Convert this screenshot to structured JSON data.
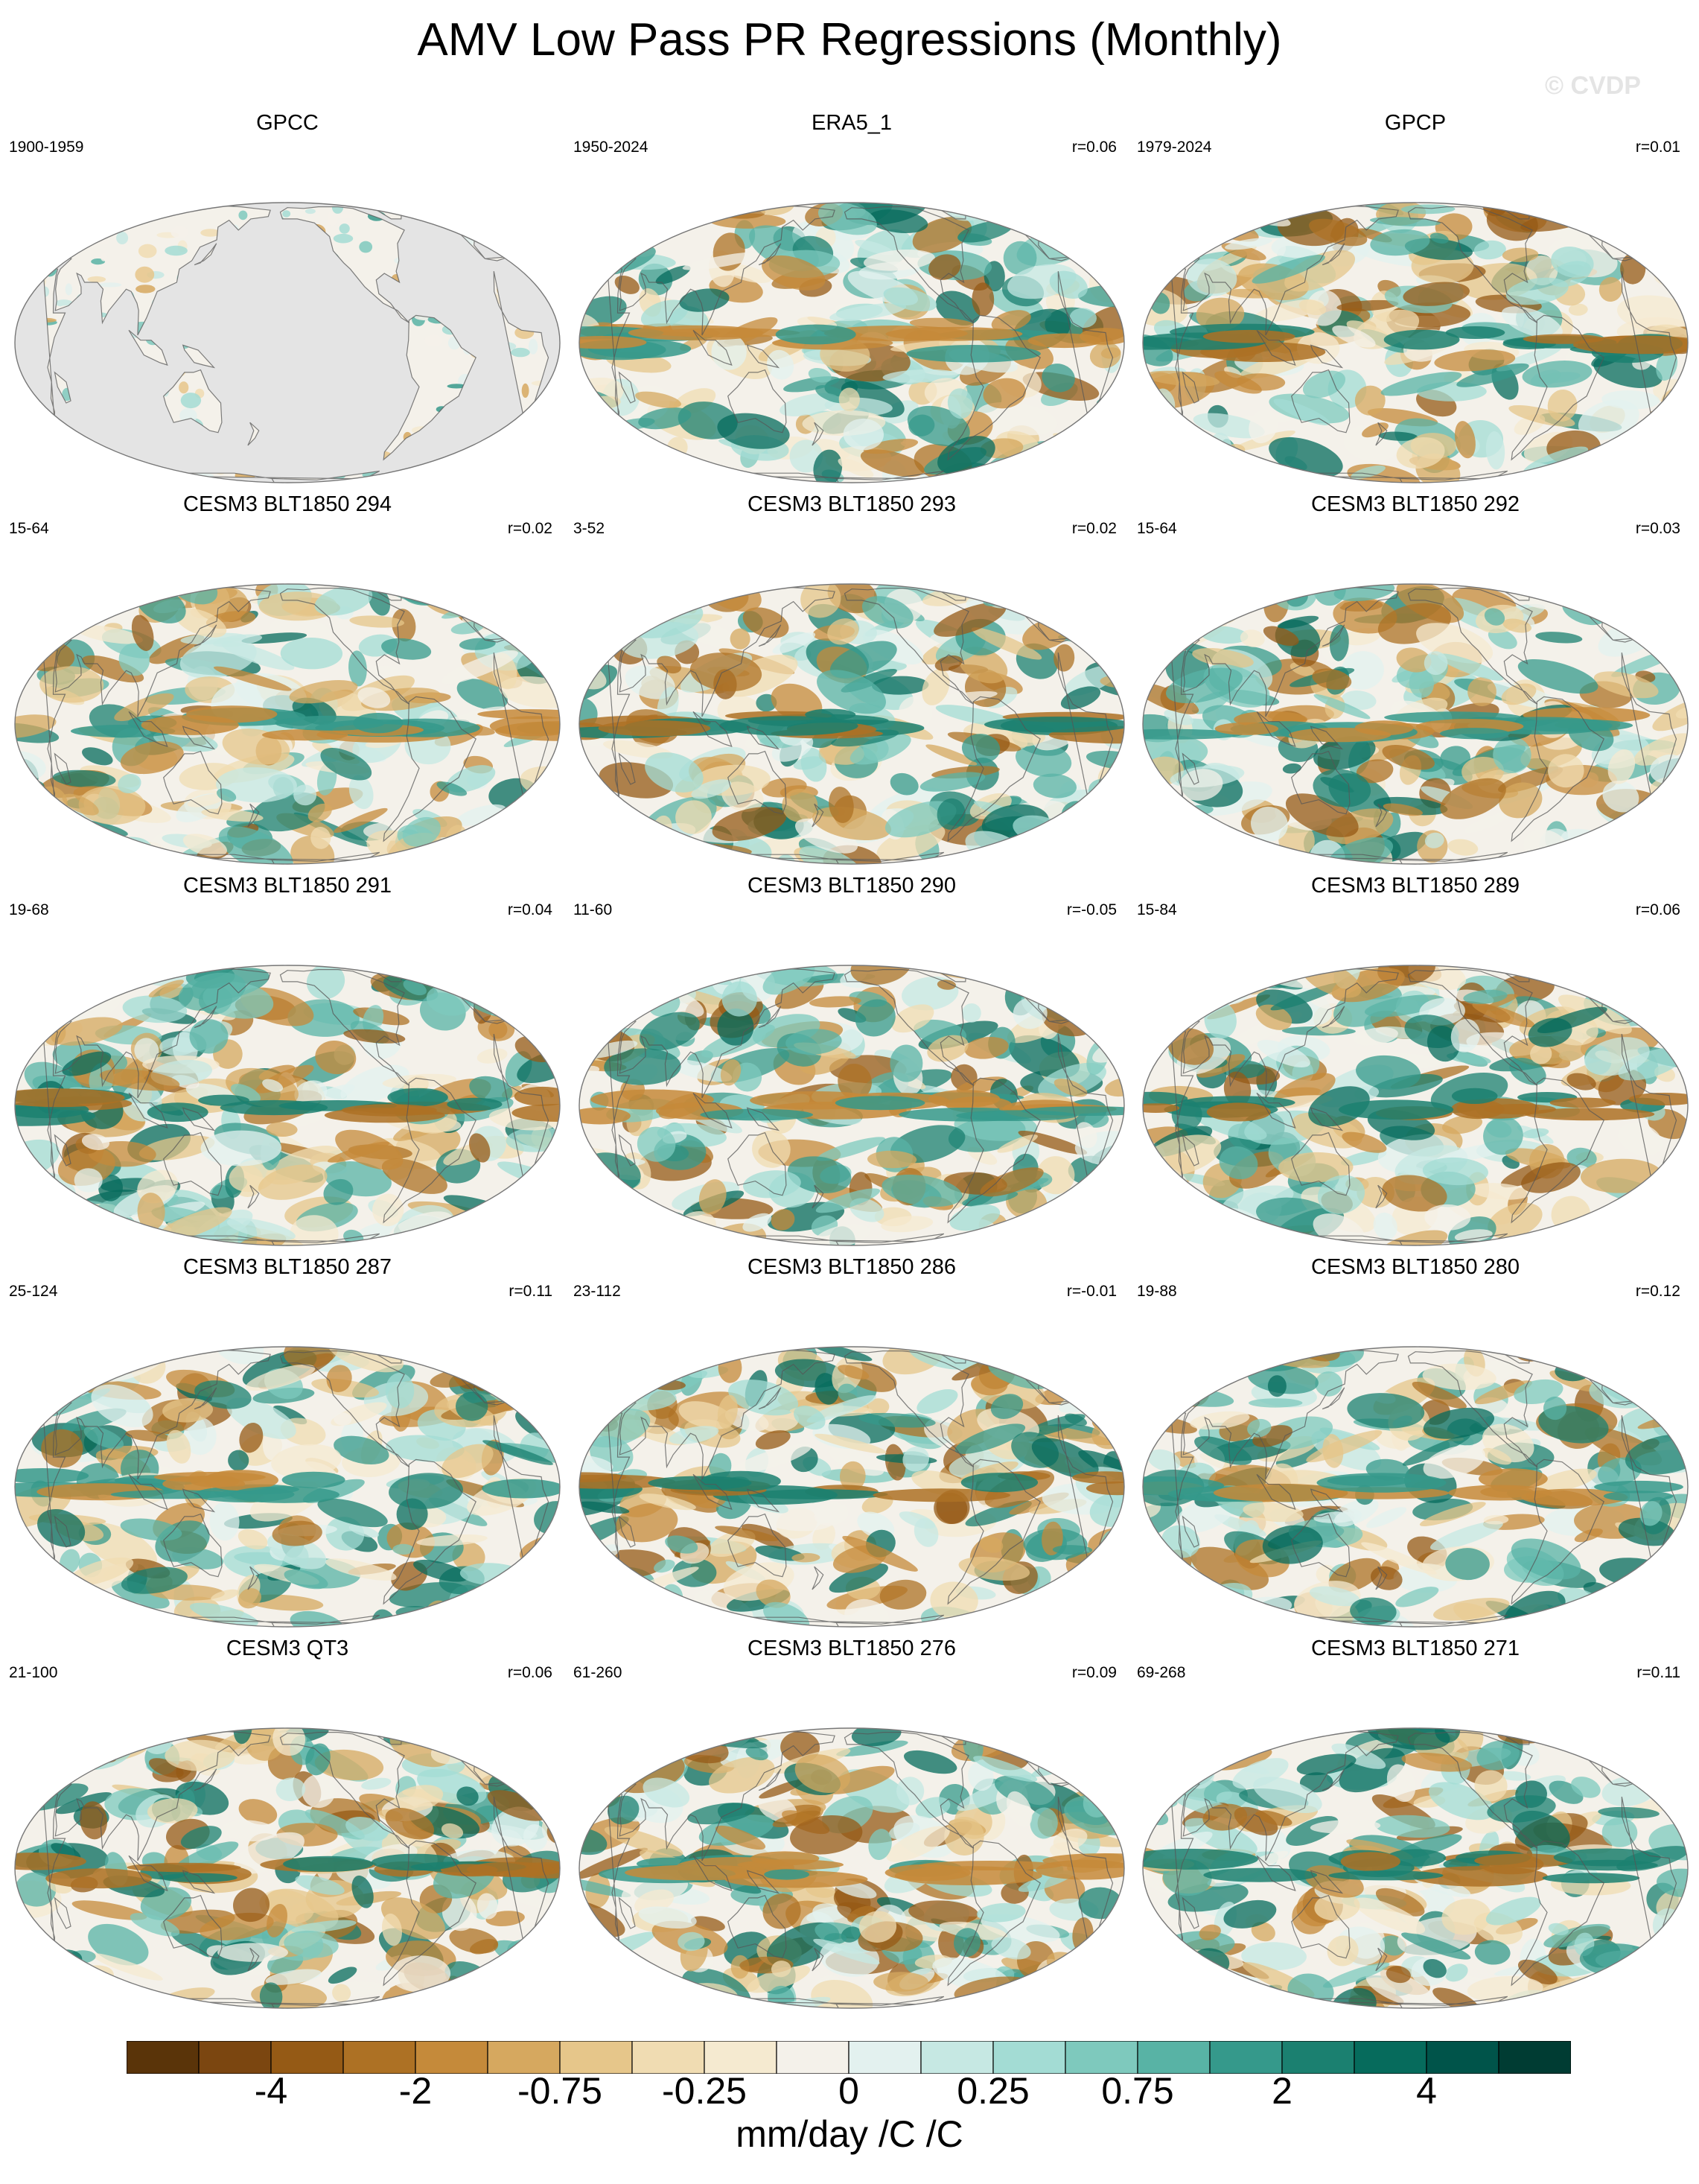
{
  "title": "AMV Low Pass PR Regressions (Monthly)",
  "watermark": "© CVDP",
  "panels": [
    {
      "title": "GPCC",
      "period": "1900-1959",
      "corr": "",
      "style": "land"
    },
    {
      "title": "ERA5_1",
      "period": "1950-2024",
      "corr": "r=0.06",
      "style": "full"
    },
    {
      "title": "GPCP",
      "period": "1979-2024",
      "corr": "r=0.01",
      "style": "full"
    },
    {
      "title": "CESM3 BLT1850 294",
      "period": "15-64",
      "corr": "r=0.02",
      "style": "full"
    },
    {
      "title": "CESM3 BLT1850 293",
      "period": "3-52",
      "corr": "r=0.02",
      "style": "full"
    },
    {
      "title": "CESM3 BLT1850 292",
      "period": "15-64",
      "corr": "r=0.03",
      "style": "full"
    },
    {
      "title": "CESM3 BLT1850 291",
      "period": "19-68",
      "corr": "r=0.04",
      "style": "full"
    },
    {
      "title": "CESM3 BLT1850 290",
      "period": "11-60",
      "corr": "r=-0.05",
      "style": "full"
    },
    {
      "title": "CESM3 BLT1850 289",
      "period": "15-84",
      "corr": "r=0.06",
      "style": "full"
    },
    {
      "title": "CESM3 BLT1850 287",
      "period": "25-124",
      "corr": "r=0.11",
      "style": "full"
    },
    {
      "title": "CESM3 BLT1850 286",
      "period": "23-112",
      "corr": "r=-0.01",
      "style": "full"
    },
    {
      "title": "CESM3 BLT1850 280",
      "period": "19-88",
      "corr": "r=0.12",
      "style": "full"
    },
    {
      "title": "CESM3 QT3",
      "period": "21-100",
      "corr": "r=0.06",
      "style": "full"
    },
    {
      "title": "CESM3 BLT1850 276",
      "period": "61-260",
      "corr": "r=0.09",
      "style": "full"
    },
    {
      "title": "CESM3 BLT1850 271",
      "period": "69-268",
      "corr": "r=0.11",
      "style": "full"
    }
  ],
  "colorbar": {
    "colors": [
      "#5a3409",
      "#7b4610",
      "#955a15",
      "#ad7124",
      "#c58a3a",
      "#d6a85f",
      "#e6c68a",
      "#f0dcb2",
      "#f5ead0",
      "#f4f1ea",
      "#e3f1ef",
      "#c6e8e3",
      "#a3dcd4",
      "#7ec9bd",
      "#58b3a5",
      "#35998b",
      "#1b8070",
      "#066b5c",
      "#00544a",
      "#003c33"
    ],
    "tick_labels": [
      "-4",
      "-2",
      "-0.75",
      "-0.25",
      "0",
      "0.25",
      "0.75",
      "2",
      "4"
    ],
    "units": "mm/day /C /C"
  }
}
